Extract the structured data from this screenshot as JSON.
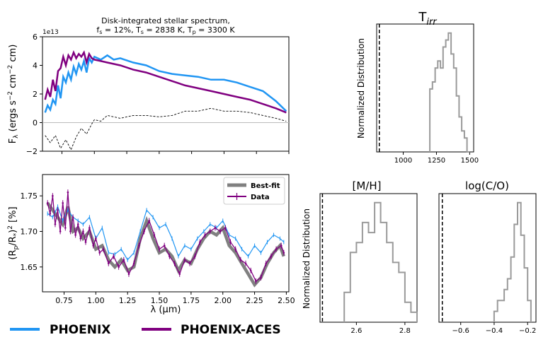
{
  "colors": {
    "phoenix": "#2196F3",
    "aces": "#800080",
    "bestfit": "#808080",
    "hist": "#9a9a9a",
    "axis": "#000000",
    "zero": "#bbbbbb"
  },
  "legend_bottom": {
    "phoenix": "PHOENIX",
    "aces": "PHOENIX-ACES"
  },
  "chart_data": [
    {
      "id": "spectrum",
      "type": "line",
      "title_line1": "Disk-integrated stellar spectrum,",
      "title_line2": "f_s = 12%, T_s = 2838 K, T_p = 3300 K",
      "ylabel": "F_λ (ergs s^-2 cm^-2 cm)",
      "offset_label": "1e13",
      "xlim": [
        0.6,
        2.5
      ],
      "ylim": [
        -2,
        6
      ],
      "yticks": [
        -2,
        0,
        2,
        4,
        6
      ],
      "series": [
        {
          "name": "PHOENIX",
          "x": [
            0.62,
            0.64,
            0.66,
            0.68,
            0.7,
            0.72,
            0.74,
            0.76,
            0.78,
            0.8,
            0.82,
            0.84,
            0.86,
            0.88,
            0.9,
            0.92,
            0.94,
            0.96,
            0.98,
            1.0,
            1.05,
            1.1,
            1.15,
            1.2,
            1.3,
            1.4,
            1.5,
            1.6,
            1.7,
            1.8,
            1.9,
            2.0,
            2.1,
            2.2,
            2.3,
            2.4,
            2.48
          ],
          "y": [
            0.7,
            1.2,
            0.9,
            1.6,
            1.3,
            2.6,
            1.7,
            3.2,
            2.8,
            3.5,
            3.0,
            3.9,
            3.4,
            4.1,
            3.7,
            4.3,
            3.5,
            4.5,
            4.2,
            4.6,
            4.4,
            4.7,
            4.4,
            4.5,
            4.2,
            4.0,
            3.6,
            3.4,
            3.3,
            3.2,
            3.0,
            3.0,
            2.8,
            2.5,
            2.2,
            1.5,
            0.8
          ]
        },
        {
          "name": "PHOENIX-ACES",
          "x": [
            0.62,
            0.64,
            0.66,
            0.68,
            0.7,
            0.72,
            0.74,
            0.76,
            0.78,
            0.8,
            0.82,
            0.84,
            0.86,
            0.88,
            0.9,
            0.92,
            0.94,
            0.96,
            0.98,
            1.0,
            1.05,
            1.1,
            1.2,
            1.3,
            1.4,
            1.5,
            1.6,
            1.7,
            1.8,
            1.9,
            2.0,
            2.1,
            2.2,
            2.3,
            2.4,
            2.48
          ],
          "y": [
            1.6,
            2.3,
            1.8,
            3.0,
            2.2,
            3.6,
            3.8,
            4.6,
            4.0,
            4.7,
            4.4,
            4.9,
            4.5,
            4.8,
            4.6,
            4.9,
            4.2,
            4.8,
            4.5,
            4.4,
            4.3,
            4.2,
            4.0,
            3.7,
            3.5,
            3.2,
            2.9,
            2.6,
            2.4,
            2.2,
            2.0,
            1.8,
            1.6,
            1.3,
            1.0,
            0.7
          ]
        },
        {
          "name": "Difference",
          "x": [
            0.62,
            0.66,
            0.7,
            0.74,
            0.78,
            0.82,
            0.86,
            0.9,
            0.94,
            0.98,
            1.0,
            1.05,
            1.1,
            1.2,
            1.3,
            1.4,
            1.5,
            1.6,
            1.7,
            1.8,
            1.9,
            2.0,
            2.1,
            2.2,
            2.3,
            2.4,
            2.48
          ],
          "y": [
            -0.9,
            -1.4,
            -0.9,
            -1.8,
            -1.2,
            -1.9,
            -1.0,
            -0.4,
            -0.8,
            -0.1,
            0.2,
            0.1,
            0.5,
            0.3,
            0.5,
            0.5,
            0.4,
            0.5,
            0.8,
            0.8,
            1.0,
            0.8,
            0.8,
            0.7,
            0.5,
            0.3,
            0.1
          ]
        }
      ]
    },
    {
      "id": "transit",
      "type": "line",
      "ylabel": "(R_p/R_*)^2 [%]",
      "xlabel": "λ (μm)",
      "xlim": [
        0.58,
        2.52
      ],
      "ylim": [
        1.615,
        1.78
      ],
      "xticks": [
        0.75,
        1.0,
        1.25,
        1.5,
        1.75,
        2.0,
        2.25,
        2.5
      ],
      "xticklabels": [
        "0.75",
        "1.00",
        "1.25",
        "1.50",
        "1.75",
        "2.00",
        "2.25",
        "2.50"
      ],
      "yticks": [
        1.65,
        1.7,
        1.75
      ],
      "yticklabels": [
        "1.65",
        "1.70",
        "1.75"
      ],
      "legend": {
        "bestfit": "Best-fit",
        "data": "Data"
      },
      "series": [
        {
          "name": "PHOENIX",
          "x": [
            0.62,
            0.66,
            0.7,
            0.74,
            0.78,
            0.82,
            0.86,
            0.9,
            0.95,
            1.0,
            1.05,
            1.1,
            1.15,
            1.2,
            1.25,
            1.3,
            1.35,
            1.4,
            1.45,
            1.5,
            1.55,
            1.6,
            1.65,
            1.7,
            1.75,
            1.8,
            1.85,
            1.9,
            1.95,
            2.0,
            2.05,
            2.1,
            2.15,
            2.2,
            2.25,
            2.3,
            2.35,
            2.4,
            2.45,
            2.48
          ],
          "y": [
            1.725,
            1.72,
            1.735,
            1.715,
            1.73,
            1.72,
            1.715,
            1.71,
            1.72,
            1.69,
            1.705,
            1.67,
            1.668,
            1.675,
            1.66,
            1.67,
            1.7,
            1.73,
            1.72,
            1.705,
            1.71,
            1.69,
            1.665,
            1.68,
            1.675,
            1.69,
            1.7,
            1.71,
            1.705,
            1.715,
            1.695,
            1.69,
            1.675,
            1.665,
            1.68,
            1.67,
            1.685,
            1.695,
            1.69,
            1.685
          ]
        },
        {
          "name": "Best-fit",
          "x": [
            0.62,
            0.66,
            0.7,
            0.74,
            0.78,
            0.82,
            0.86,
            0.9,
            0.95,
            1.0,
            1.05,
            1.1,
            1.15,
            1.2,
            1.25,
            1.3,
            1.35,
            1.4,
            1.45,
            1.5,
            1.55,
            1.6,
            1.65,
            1.7,
            1.75,
            1.8,
            1.85,
            1.9,
            1.95,
            2.0,
            2.05,
            2.1,
            2.15,
            2.2,
            2.25,
            2.3,
            2.35,
            2.4,
            2.45,
            2.48
          ],
          "y": [
            1.74,
            1.73,
            1.72,
            1.71,
            1.735,
            1.7,
            1.705,
            1.69,
            1.7,
            1.675,
            1.68,
            1.66,
            1.65,
            1.66,
            1.645,
            1.65,
            1.69,
            1.715,
            1.69,
            1.67,
            1.675,
            1.665,
            1.645,
            1.66,
            1.655,
            1.675,
            1.69,
            1.7,
            1.695,
            1.705,
            1.68,
            1.67,
            1.655,
            1.64,
            1.625,
            1.635,
            1.655,
            1.67,
            1.68,
            1.665
          ]
        },
        {
          "name": "Data",
          "x": [
            0.62,
            0.64,
            0.66,
            0.68,
            0.7,
            0.72,
            0.74,
            0.76,
            0.78,
            0.8,
            0.82,
            0.84,
            0.86,
            0.88,
            0.9,
            0.92,
            0.95,
            0.98,
            1.0,
            1.03,
            1.06,
            1.1,
            1.14,
            1.18,
            1.22,
            1.26,
            1.3,
            1.34,
            1.38,
            1.42,
            1.46,
            1.5,
            1.54,
            1.58,
            1.62,
            1.66,
            1.7,
            1.74,
            1.78,
            1.82,
            1.86,
            1.9,
            1.94,
            1.98,
            2.02,
            2.06,
            2.1,
            2.14,
            2.18,
            2.22,
            2.26,
            2.3,
            2.34,
            2.38,
            2.42,
            2.46,
            2.48
          ],
          "y": [
            1.74,
            1.725,
            1.75,
            1.71,
            1.73,
            1.7,
            1.74,
            1.705,
            1.755,
            1.7,
            1.72,
            1.695,
            1.71,
            1.69,
            1.7,
            1.685,
            1.705,
            1.68,
            1.69,
            1.67,
            1.675,
            1.655,
            1.665,
            1.65,
            1.66,
            1.64,
            1.655,
            1.68,
            1.7,
            1.715,
            1.695,
            1.675,
            1.68,
            1.665,
            1.655,
            1.64,
            1.66,
            1.655,
            1.665,
            1.685,
            1.695,
            1.7,
            1.705,
            1.7,
            1.705,
            1.685,
            1.675,
            1.66,
            1.655,
            1.645,
            1.63,
            1.635,
            1.655,
            1.665,
            1.675,
            1.68,
            1.67
          ]
        }
      ]
    },
    {
      "id": "hist-tirr",
      "type": "bar",
      "title": "T",
      "title_sub": "irr",
      "ylabel": "Normalized Distribution",
      "xlim": [
        800,
        1530
      ],
      "xticks": [
        1000,
        1250,
        1500
      ],
      "xticklabels": [
        "1000",
        "1250",
        "1500"
      ],
      "truth_line": 820,
      "bin_edges": [
        1200,
        1220,
        1240,
        1260,
        1280,
        1300,
        1320,
        1340,
        1360,
        1380,
        1400,
        1420,
        1440,
        1460,
        1480,
        1500
      ],
      "counts": [
        9,
        10,
        12,
        13,
        12,
        15,
        16,
        17,
        14,
        12,
        8,
        5,
        3,
        2,
        0
      ]
    },
    {
      "id": "hist-mh",
      "type": "bar",
      "title": "[M/H]",
      "ylabel": "Normalized Distribution",
      "xlim": [
        2.45,
        2.85
      ],
      "xticks": [
        2.6,
        2.8
      ],
      "xticklabels": [
        "2.6",
        "2.8"
      ],
      "truth_line": 2.46,
      "bin_edges": [
        2.55,
        2.575,
        2.6,
        2.625,
        2.65,
        2.675,
        2.7,
        2.725,
        2.75,
        2.775,
        2.8,
        2.825,
        2.85
      ],
      "counts": [
        3,
        7,
        8,
        10,
        9,
        12,
        10,
        8,
        6,
        5,
        2,
        1
      ]
    },
    {
      "id": "hist-co",
      "type": "bar",
      "title": "log(C/O)",
      "xlim": [
        -0.73,
        -0.15
      ],
      "xticks": [
        -0.6,
        -0.4,
        -0.2
      ],
      "xticklabels": [
        "−0.6",
        "−0.4",
        "−0.2"
      ],
      "truth_line": -0.71,
      "bin_edges": [
        -0.4,
        -0.38,
        -0.36,
        -0.34,
        -0.32,
        -0.3,
        -0.28,
        -0.26,
        -0.24,
        -0.22,
        -0.2,
        -0.18
      ],
      "counts": [
        1,
        2,
        2,
        3,
        4,
        6,
        9,
        11,
        8,
        5,
        2
      ]
    }
  ]
}
